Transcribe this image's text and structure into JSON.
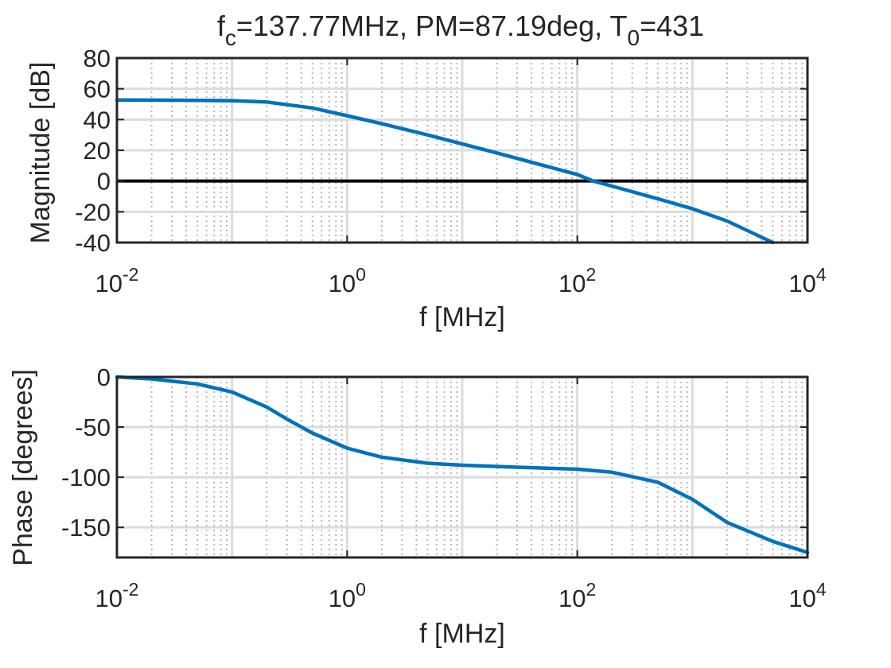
{
  "figure": {
    "title_parts": {
      "f": "f",
      "f_sub": "c",
      "middle": "=137.77MHz, PM=87.19deg, T",
      "t_sub": "0",
      "end": "=431"
    },
    "title": "fc=137.77MHz, PM=87.19deg, T0=431"
  },
  "colors": {
    "series": "#0072BD",
    "axis": "#262626",
    "grid": "#DCDCDC",
    "zero_line": "#000000"
  },
  "chart_data": [
    {
      "type": "line",
      "name": "magnitude",
      "xlabel": "f [MHz]",
      "ylabel": "Magnitude [dB]",
      "xscale": "log",
      "xlim": [
        0.01,
        10000
      ],
      "ylim": [
        -40,
        80
      ],
      "xticks": [
        0.01,
        1,
        100,
        10000
      ],
      "xtick_labels": [
        {
          "base": "10",
          "exp": "-2"
        },
        {
          "base": "10",
          "exp": "0"
        },
        {
          "base": "10",
          "exp": "2"
        },
        {
          "base": "10",
          "exp": "4"
        }
      ],
      "yticks": [
        80,
        60,
        40,
        20,
        0,
        -20,
        -40
      ],
      "ytick_labels": [
        "80",
        "60",
        "40",
        "20",
        "0",
        "-20",
        "-40"
      ],
      "grid": true,
      "reference_line_y": 0,
      "x": [
        0.01,
        0.03,
        0.1,
        0.2,
        0.5,
        1,
        2,
        5,
        10,
        20,
        50,
        100,
        137.77,
        200,
        500,
        1000,
        2000,
        5000
      ],
      "y": [
        52.7,
        52.6,
        52.3,
        51.4,
        47.5,
        42.5,
        37.3,
        30.0,
        24.2,
        18.3,
        10.3,
        4.3,
        0,
        -3.3,
        -11.5,
        -18.0,
        -26.0,
        -40.0
      ]
    },
    {
      "type": "line",
      "name": "phase",
      "xlabel": "f [MHz]",
      "ylabel": "Phase [degrees]",
      "xscale": "log",
      "xlim": [
        0.01,
        10000
      ],
      "ylim": [
        -180,
        0
      ],
      "xticks": [
        0.01,
        1,
        100,
        10000
      ],
      "xtick_labels": [
        {
          "base": "10",
          "exp": "-2"
        },
        {
          "base": "10",
          "exp": "0"
        },
        {
          "base": "10",
          "exp": "2"
        },
        {
          "base": "10",
          "exp": "4"
        }
      ],
      "yticks": [
        0,
        -50,
        -100,
        -150
      ],
      "ytick_labels": [
        "0",
        "-50",
        "-100",
        "-150"
      ],
      "grid": true,
      "x": [
        0.01,
        0.02,
        0.05,
        0.1,
        0.2,
        0.3,
        0.5,
        1,
        2,
        5,
        10,
        30,
        100,
        200,
        500,
        1000,
        2000,
        5000,
        10000
      ],
      "y": [
        0,
        -2,
        -7,
        -15,
        -30,
        -42,
        -56,
        -71,
        -80,
        -86,
        -88,
        -90,
        -92,
        -95,
        -105,
        -122,
        -145,
        -164,
        -175
      ]
    }
  ]
}
